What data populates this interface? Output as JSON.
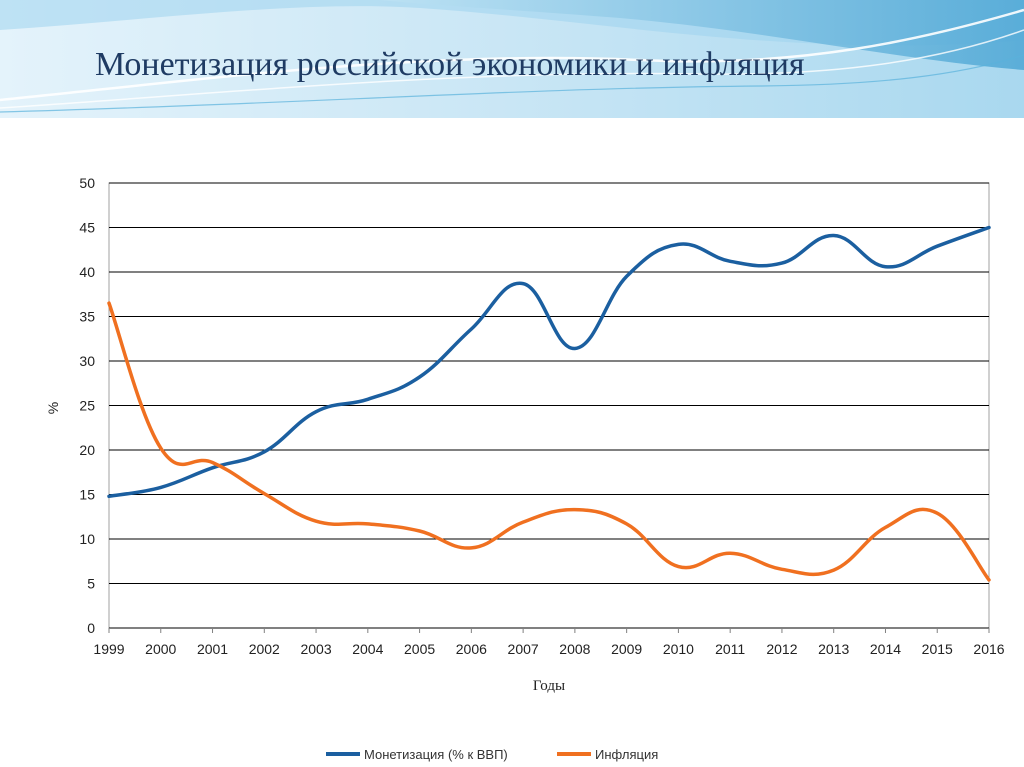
{
  "slide": {
    "title": "Монетизация российской экономики и инфляция"
  },
  "colors": {
    "monetization": "#1b5fa0",
    "inflation": "#f07020",
    "grid": "#000000",
    "banner_light": "#d6ecf7",
    "banner_mid": "#7ec3e6",
    "banner_dark": "#2f8fc6"
  },
  "chart_data": {
    "type": "line",
    "title": "",
    "xlabel": "Годы",
    "ylabel": "%",
    "ylim": [
      0,
      50
    ],
    "yticks": [
      "0",
      "5",
      "10",
      "15",
      "20",
      "25",
      "30",
      "35",
      "40",
      "45",
      "50"
    ],
    "categories": [
      "1999",
      "2000",
      "2001",
      "2002",
      "2003",
      "2004",
      "2005",
      "2006",
      "2007",
      "2008",
      "2009",
      "2010",
      "2011",
      "2012",
      "2013",
      "2014",
      "2015",
      "2016"
    ],
    "grid": true,
    "legend_position": "bottom",
    "series": [
      {
        "name": "Монетизация (% к ВВП)",
        "color": "#1b5fa0",
        "values": [
          14.8,
          15.8,
          18.0,
          19.8,
          24.3,
          25.7,
          28.2,
          33.6,
          38.7,
          31.4,
          39.5,
          43.1,
          41.2,
          41.0,
          44.1,
          40.6,
          42.9,
          45.0
        ]
      },
      {
        "name": "Инфляция",
        "color": "#f07020",
        "values": [
          36.5,
          20.2,
          18.6,
          15.1,
          12.0,
          11.7,
          10.9,
          9.0,
          11.9,
          13.3,
          11.7,
          6.9,
          8.4,
          6.6,
          6.5,
          11.3,
          12.9,
          5.4
        ]
      }
    ]
  }
}
